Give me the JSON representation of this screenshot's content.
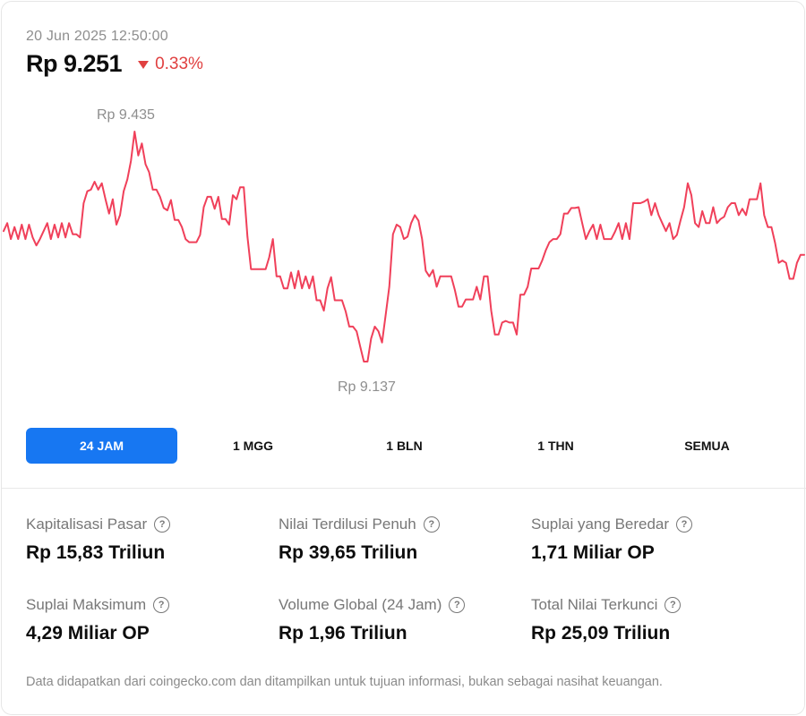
{
  "header": {
    "timestamp": "20 Jun 2025 12:50:00",
    "price": "Rp 9.251",
    "change": "0.33%",
    "change_direction": "down",
    "change_color": "#e04040"
  },
  "chart_data": {
    "type": "line",
    "line_color": "#f0405a",
    "high_label": "Rp 9.435",
    "low_label": "Rp 9.137",
    "ymin": 9137,
    "ymax": 9435,
    "values": [
      9310,
      9320,
      9300,
      9315,
      9300,
      9318,
      9300,
      9318,
      9302,
      9292,
      9300,
      9310,
      9320,
      9300,
      9318,
      9302,
      9320,
      9302,
      9320,
      9306,
      9306,
      9302,
      9345,
      9360,
      9362,
      9372,
      9362,
      9370,
      9350,
      9332,
      9350,
      9318,
      9330,
      9360,
      9375,
      9398,
      9435,
      9405,
      9420,
      9394,
      9384,
      9362,
      9362,
      9353,
      9339,
      9336,
      9349,
      9324,
      9324,
      9315,
      9300,
      9296,
      9296,
      9296,
      9305,
      9340,
      9353,
      9353,
      9338,
      9353,
      9325,
      9325,
      9318,
      9355,
      9350,
      9365,
      9365,
      9303,
      9262,
      9262,
      9262,
      9262,
      9262,
      9277,
      9300,
      9253,
      9253,
      9238,
      9238,
      9258,
      9238,
      9260,
      9238,
      9253,
      9238,
      9253,
      9223,
      9223,
      9210,
      9238,
      9252,
      9223,
      9223,
      9223,
      9209,
      9190,
      9190,
      9184,
      9165,
      9146,
      9146,
      9175,
      9190,
      9184,
      9170,
      9205,
      9240,
      9306,
      9318,
      9315,
      9300,
      9303,
      9320,
      9330,
      9323,
      9300,
      9260,
      9253,
      9261,
      9240,
      9253,
      9253,
      9253,
      9253,
      9236,
      9215,
      9215,
      9224,
      9224,
      9224,
      9240,
      9224,
      9253,
      9253,
      9210,
      9180,
      9180,
      9195,
      9197,
      9195,
      9195,
      9180,
      9230,
      9230,
      9240,
      9263,
      9263,
      9263,
      9273,
      9286,
      9296,
      9300,
      9300,
      9306,
      9332,
      9332,
      9339,
      9339,
      9340,
      9320,
      9300,
      9310,
      9318,
      9300,
      9318,
      9300,
      9300,
      9300,
      9309,
      9320,
      9300,
      9320,
      9300,
      9345,
      9345,
      9345,
      9347,
      9350,
      9330,
      9345,
      9330,
      9320,
      9310,
      9320,
      9300,
      9305,
      9323,
      9340,
      9370,
      9355,
      9320,
      9315,
      9335,
      9320,
      9320,
      9340,
      9320,
      9325,
      9328,
      9340,
      9345,
      9345,
      9330,
      9338,
      9330,
      9350,
      9350,
      9350,
      9370,
      9330,
      9315,
      9315,
      9295,
      9270,
      9273,
      9270,
      9250,
      9250,
      9270,
      9280,
      9280
    ]
  },
  "ranges": {
    "items": [
      {
        "label": "24 JAM"
      },
      {
        "label": "1 MGG"
      },
      {
        "label": "1 BLN"
      },
      {
        "label": "1 THN"
      },
      {
        "label": "SEMUA"
      }
    ],
    "active_index": 0,
    "accent": "#1777f2"
  },
  "stats": [
    {
      "label": "Kapitalisasi Pasar",
      "value": "Rp 15,83 Triliun"
    },
    {
      "label": "Nilai Terdilusi Penuh",
      "value": "Rp 39,65 Triliun"
    },
    {
      "label": "Suplai yang Beredar",
      "value": "1,71 Miliar OP"
    },
    {
      "label": "Suplai Maksimum",
      "value": "4,29 Miliar OP"
    },
    {
      "label": "Volume Global (24 Jam)",
      "value": "Rp 1,96 Triliun"
    },
    {
      "label": "Total Nilai Terkunci",
      "value": "Rp 25,09 Triliun"
    }
  ],
  "help_glyph": "?",
  "disclaimer": "Data didapatkan dari coingecko.com dan ditampilkan untuk tujuan informasi, bukan sebagai nasihat keuangan."
}
